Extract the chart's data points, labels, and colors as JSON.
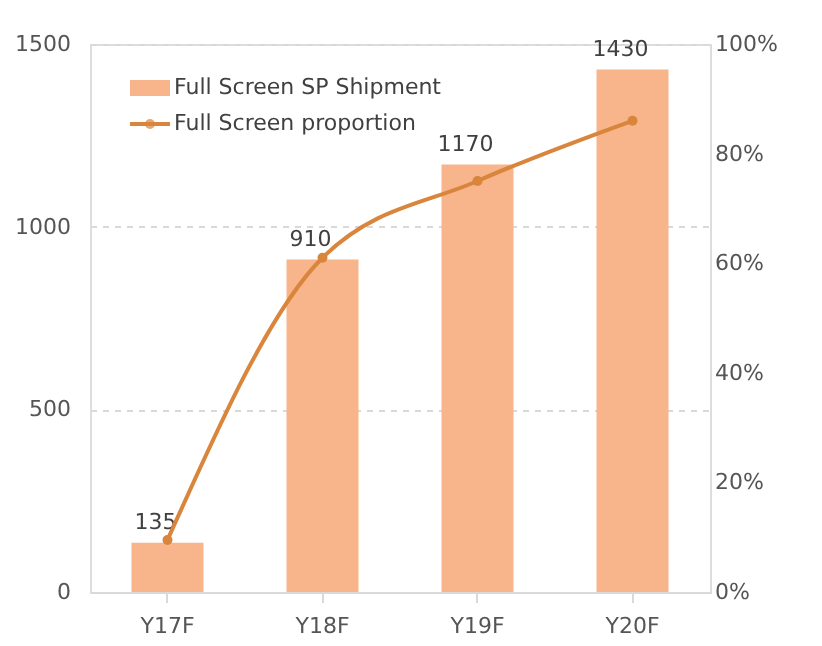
{
  "chart_data": {
    "type": "bar",
    "categories": [
      "Y17F",
      "Y18F",
      "Y19F",
      "Y20F"
    ],
    "series": [
      {
        "name": "Full Screen SP Shipment",
        "color": "#f8b48a",
        "values": [
          135,
          910,
          1170,
          1430
        ],
        "value_labels": [
          "135",
          "910",
          "1170",
          "1430"
        ]
      },
      {
        "name": "Full Screen proportion",
        "type": "line",
        "axis": "y2",
        "color": "#d9853b",
        "values": [
          9.5,
          61,
          75,
          86
        ]
      }
    ],
    "ylim": [
      0,
      1500
    ],
    "yticks": [
      0,
      500,
      1000,
      1500
    ],
    "y2lim": [
      0,
      100
    ],
    "y2ticks": [
      {
        "value": 0,
        "label": "0%"
      },
      {
        "value": 20,
        "label": "20%"
      },
      {
        "value": 40,
        "label": "40%"
      },
      {
        "value": 60,
        "label": "60%"
      },
      {
        "value": 80,
        "label": "80%"
      },
      {
        "value": 100,
        "label": "100%"
      }
    ],
    "grid": "y",
    "legend": "top left",
    "marker": "circle",
    "line_style": "solid"
  }
}
